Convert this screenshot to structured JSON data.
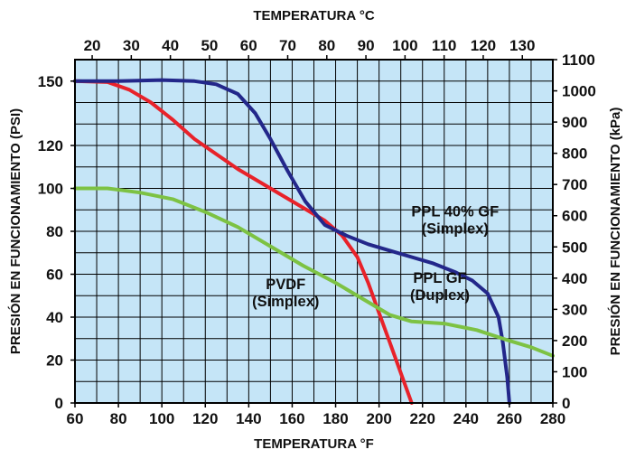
{
  "chart_data": {
    "type": "line",
    "title": "",
    "xlabel": "TEMPERATURA °F",
    "x2label": "TEMPERATURA °C",
    "ylabel": "PRESIÓN EN FUNCIONAMIENTO (PSI)",
    "y2label": "PRESIÓN EN FUNCIONAMIENTO (kPa)",
    "xlim": [
      60,
      280
    ],
    "ylim": [
      0,
      160
    ],
    "x2lim": [
      15.6,
      137.8
    ],
    "y2lim": [
      0,
      1100
    ],
    "x_ticks": [
      "60",
      "80",
      "100",
      "120",
      "140",
      "160",
      "180",
      "200",
      "220",
      "240",
      "260",
      "280"
    ],
    "y_ticks": [
      "0",
      "20",
      "40",
      "60",
      "80",
      "100",
      "120",
      "150"
    ],
    "y_tick_values": [
      0,
      20,
      40,
      60,
      80,
      100,
      120,
      150
    ],
    "x2_ticks": [
      "20",
      "30",
      "40",
      "50",
      "60",
      "70",
      "80",
      "90",
      "100",
      "110",
      "120",
      "130"
    ],
    "y2_ticks": [
      "0",
      "100",
      "200",
      "300",
      "400",
      "500",
      "600",
      "700",
      "800",
      "900",
      "1000",
      "1100"
    ],
    "grid": true,
    "background": "#c5e5f7",
    "series": [
      {
        "color": "#e8222a",
        "x": [
          60,
          75,
          85,
          95,
          105,
          115,
          125,
          135,
          145,
          155,
          165,
          175,
          183,
          190,
          195,
          200,
          205,
          210,
          215
        ],
        "y": [
          150,
          149.5,
          146,
          140,
          132,
          123,
          116,
          109,
          103,
          97,
          91,
          85,
          78,
          68,
          56,
          42,
          28,
          14,
          0
        ]
      },
      {
        "color": "#23278a",
        "x": [
          60,
          80,
          100,
          115,
          125,
          135,
          143,
          150,
          158,
          166,
          175,
          185,
          195,
          205,
          215,
          225,
          235,
          243,
          250,
          255,
          257,
          259,
          260
        ],
        "y": [
          150,
          150,
          150.5,
          150,
          148.5,
          144,
          135,
          123,
          108,
          94,
          83,
          78,
          74,
          71,
          68,
          65,
          61,
          57,
          51,
          40,
          28,
          12,
          0
        ]
      },
      {
        "color": "#7dc243",
        "x": [
          60,
          75,
          90,
          105,
          120,
          135,
          150,
          165,
          180,
          195,
          205,
          215,
          230,
          245,
          260,
          270,
          280
        ],
        "y": [
          100,
          100,
          98,
          95,
          89,
          82,
          73,
          64,
          56,
          47,
          41,
          38,
          37,
          34,
          29,
          26,
          22
        ]
      }
    ],
    "annotations": [
      {
        "lines": [
          "PPL 40% GF",
          "(Simplex)"
        ],
        "x": 235,
        "y": 87
      },
      {
        "lines": [
          "PPL GF",
          "(Duplex)"
        ],
        "x": 228,
        "y": 56
      },
      {
        "lines": [
          "PVDF",
          "(Simplex)"
        ],
        "x": 157,
        "y": 53
      }
    ]
  }
}
